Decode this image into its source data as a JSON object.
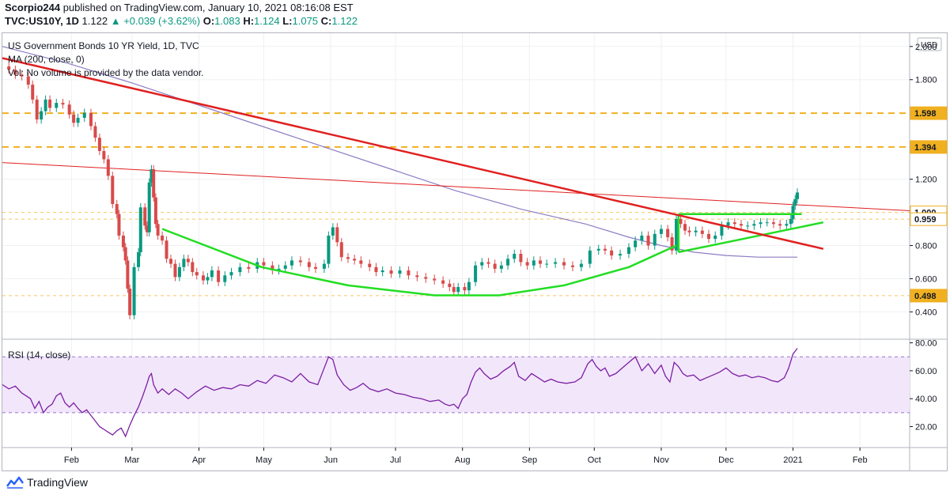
{
  "header": {
    "author": "Scorpio244",
    "published": "published on TradingView.com, January 10, 2021 08:16:08 EST",
    "symbol": "TVC:US10Y, 1D",
    "last": "1.122",
    "change": "+0.039 (+3.62%)",
    "o_label": "O:",
    "o": "1.083",
    "h_label": "H:",
    "h": "1.124",
    "l_label": "L:",
    "l": "1.075",
    "c_label": "C:",
    "c": "1.122"
  },
  "brand": {
    "name": "TradingView"
  },
  "colors": {
    "up": "#089981",
    "down": "#d84a4a",
    "grid": "#eef0f3",
    "ma": "#8e7cc3",
    "trend_red": "#e02020",
    "trend_green": "#22dd22",
    "level": "#f0b020",
    "rsi_band": "#f2e6fb",
    "rsi_line": "#7b1fa2"
  },
  "chart_data": [
    {
      "type": "candlestick",
      "title": "US Government Bonds 10 YR Yield, 1D, TVC",
      "legend": [
        "MA (200, close, 0)",
        "Vol: No volume is provided by the data vendor."
      ],
      "currency": "USD",
      "yticks": [
        "2.000",
        "1.800",
        "1.200",
        "0.800",
        "0.600",
        "0.400"
      ],
      "ylim": [
        0.24,
        2.08
      ],
      "levels": [
        1.598,
        1.394,
        1.0,
        0.959,
        0.498
      ],
      "level_labels": [
        "1.598",
        "1.394",
        "1.000",
        "0.959",
        "0.498"
      ],
      "last_price_box": "1.000",
      "months": [
        {
          "label": "Feb",
          "x": 32
        },
        {
          "label": "Mar",
          "x": 60
        },
        {
          "label": "Apr",
          "x": 91
        },
        {
          "label": "May",
          "x": 121
        },
        {
          "label": "Jun",
          "x": 152
        },
        {
          "label": "Jul",
          "x": 182
        },
        {
          "label": "Aug",
          "x": 213
        },
        {
          "label": "Sep",
          "x": 244
        },
        {
          "label": "Oct",
          "x": 274
        },
        {
          "label": "Nov",
          "x": 305
        },
        {
          "label": "Dec",
          "x": 335
        },
        {
          "label": "2021",
          "x": 366
        },
        {
          "label": "Feb",
          "x": 397
        }
      ],
      "xlim": [
        0,
        420
      ],
      "close_series": [
        [
          0,
          1.88
        ],
        [
          3,
          1.86
        ],
        [
          6,
          1.83
        ],
        [
          9,
          1.82
        ],
        [
          12,
          1.77
        ],
        [
          14,
          1.68
        ],
        [
          16,
          1.56
        ],
        [
          18,
          1.61
        ],
        [
          20,
          1.68
        ],
        [
          22,
          1.63
        ],
        [
          25,
          1.66
        ],
        [
          28,
          1.65
        ],
        [
          31,
          1.59
        ],
        [
          33,
          1.54
        ],
        [
          35,
          1.57
        ],
        [
          38,
          1.6
        ],
        [
          41,
          1.52
        ],
        [
          43,
          1.45
        ],
        [
          45,
          1.37
        ],
        [
          47,
          1.32
        ],
        [
          49,
          1.22
        ],
        [
          51,
          1.05
        ],
        [
          53,
          0.99
        ],
        [
          54,
          0.86
        ],
        [
          56,
          0.79
        ],
        [
          57,
          0.71
        ],
        [
          58,
          0.54
        ],
        [
          59,
          0.38
        ],
        [
          61,
          0.67
        ],
        [
          63,
          0.76
        ],
        [
          64,
          1.03
        ],
        [
          66,
          0.92
        ],
        [
          67,
          0.88
        ],
        [
          68,
          1.18
        ],
        [
          69,
          1.26
        ],
        [
          70,
          1.09
        ],
        [
          71,
          0.93
        ],
        [
          72,
          0.86
        ],
        [
          74,
          0.83
        ],
        [
          76,
          0.72
        ],
        [
          78,
          0.69
        ],
        [
          80,
          0.61
        ],
        [
          82,
          0.67
        ],
        [
          84,
          0.72
        ],
        [
          86,
          0.7
        ],
        [
          88,
          0.64
        ],
        [
          90,
          0.62
        ],
        [
          93,
          0.59
        ],
        [
          95,
          0.61
        ],
        [
          97,
          0.65
        ],
        [
          100,
          0.58
        ],
        [
          103,
          0.62
        ],
        [
          106,
          0.64
        ],
        [
          110,
          0.67
        ],
        [
          114,
          0.66
        ],
        [
          118,
          0.7
        ],
        [
          121,
          0.68
        ],
        [
          125,
          0.65
        ],
        [
          128,
          0.66
        ],
        [
          131,
          0.68
        ],
        [
          134,
          0.71
        ],
        [
          138,
          0.7
        ],
        [
          142,
          0.67
        ],
        [
          145,
          0.66
        ],
        [
          149,
          0.69
        ],
        [
          151,
          0.86
        ],
        [
          153,
          0.91
        ],
        [
          155,
          0.82
        ],
        [
          157,
          0.73
        ],
        [
          160,
          0.72
        ],
        [
          163,
          0.71
        ],
        [
          166,
          0.69
        ],
        [
          170,
          0.67
        ],
        [
          173,
          0.64
        ],
        [
          176,
          0.65
        ],
        [
          180,
          0.63
        ],
        [
          184,
          0.65
        ],
        [
          188,
          0.62
        ],
        [
          192,
          0.61
        ],
        [
          196,
          0.6
        ],
        [
          200,
          0.59
        ],
        [
          204,
          0.57
        ],
        [
          207,
          0.55
        ],
        [
          209,
          0.52
        ],
        [
          211,
          0.55
        ],
        [
          214,
          0.53
        ],
        [
          216,
          0.58
        ],
        [
          219,
          0.68
        ],
        [
          222,
          0.7
        ],
        [
          225,
          0.69
        ],
        [
          228,
          0.66
        ],
        [
          231,
          0.68
        ],
        [
          234,
          0.72
        ],
        [
          237,
          0.75
        ],
        [
          240,
          0.7
        ],
        [
          243,
          0.68
        ],
        [
          246,
          0.71
        ],
        [
          249,
          0.69
        ],
        [
          252,
          0.69
        ],
        [
          256,
          0.7
        ],
        [
          260,
          0.68
        ],
        [
          264,
          0.67
        ],
        [
          268,
          0.69
        ],
        [
          272,
          0.77
        ],
        [
          276,
          0.78
        ],
        [
          279,
          0.77
        ],
        [
          282,
          0.74
        ],
        [
          286,
          0.75
        ],
        [
          290,
          0.79
        ],
        [
          293,
          0.83
        ],
        [
          296,
          0.86
        ],
        [
          299,
          0.8
        ],
        [
          302,
          0.87
        ],
        [
          305,
          0.9
        ],
        [
          308,
          0.85
        ],
        [
          310,
          0.77
        ],
        [
          312,
          0.96
        ],
        [
          314,
          0.93
        ],
        [
          316,
          0.89
        ],
        [
          318,
          0.88
        ],
        [
          321,
          0.89
        ],
        [
          324,
          0.87
        ],
        [
          327,
          0.84
        ],
        [
          330,
          0.86
        ],
        [
          333,
          0.92
        ],
        [
          336,
          0.94
        ],
        [
          339,
          0.93
        ],
        [
          342,
          0.92
        ],
        [
          345,
          0.92
        ],
        [
          348,
          0.93
        ],
        [
          351,
          0.94
        ],
        [
          354,
          0.94
        ],
        [
          357,
          0.93
        ],
        [
          360,
          0.92
        ],
        [
          363,
          0.93
        ],
        [
          365,
          0.96
        ],
        [
          366,
          1.04
        ],
        [
          367,
          1.08
        ],
        [
          368,
          1.12
        ]
      ],
      "ma200": [
        [
          0,
          2.0
        ],
        [
          30,
          1.9
        ],
        [
          60,
          1.78
        ],
        [
          90,
          1.65
        ],
        [
          120,
          1.52
        ],
        [
          150,
          1.39
        ],
        [
          180,
          1.26
        ],
        [
          210,
          1.13
        ],
        [
          240,
          1.02
        ],
        [
          270,
          0.93
        ],
        [
          290,
          0.85
        ],
        [
          305,
          0.8
        ],
        [
          320,
          0.76
        ],
        [
          335,
          0.74
        ],
        [
          350,
          0.73
        ],
        [
          368,
          0.73
        ]
      ],
      "trend_red_long": [
        [
          0,
          1.93
        ],
        [
          380,
          0.78
        ]
      ],
      "trend_red_thin": [
        [
          0,
          1.3
        ],
        [
          420,
          1.01
        ]
      ],
      "cup_green": [
        [
          74,
          0.9
        ],
        [
          120,
          0.67
        ],
        [
          160,
          0.56
        ],
        [
          200,
          0.5
        ],
        [
          230,
          0.5
        ],
        [
          260,
          0.56
        ],
        [
          290,
          0.67
        ],
        [
          312,
          0.8
        ]
      ],
      "triangle_top": [
        [
          313,
          0.99
        ],
        [
          370,
          0.99
        ]
      ],
      "triangle_bottom": [
        [
          313,
          0.76
        ],
        [
          380,
          0.94
        ]
      ],
      "triangle_side": [
        [
          313,
          0.99
        ],
        [
          313,
          0.76
        ]
      ]
    },
    {
      "type": "line",
      "title": "RSI (14, close)",
      "yticks": [
        "80.00",
        "60.00",
        "40.00",
        "20.00"
      ],
      "ylim": [
        5,
        82
      ],
      "band": [
        30,
        70
      ],
      "values": [
        [
          0,
          50
        ],
        [
          3,
          47
        ],
        [
          6,
          49
        ],
        [
          9,
          44
        ],
        [
          11,
          42
        ],
        [
          13,
          40
        ],
        [
          15,
          33
        ],
        [
          17,
          38
        ],
        [
          19,
          30
        ],
        [
          21,
          34
        ],
        [
          23,
          36
        ],
        [
          25,
          42
        ],
        [
          27,
          44
        ],
        [
          29,
          37
        ],
        [
          31,
          34
        ],
        [
          33,
          37
        ],
        [
          35,
          33
        ],
        [
          37,
          30
        ],
        [
          39,
          32
        ],
        [
          41,
          28
        ],
        [
          43,
          24
        ],
        [
          45,
          20
        ],
        [
          47,
          18
        ],
        [
          49,
          16
        ],
        [
          51,
          14
        ],
        [
          53,
          17
        ],
        [
          55,
          19
        ],
        [
          57,
          13
        ],
        [
          59,
          21
        ],
        [
          61,
          28
        ],
        [
          63,
          34
        ],
        [
          65,
          42
        ],
        [
          67,
          51
        ],
        [
          68,
          56
        ],
        [
          69,
          58
        ],
        [
          70,
          50
        ],
        [
          72,
          44
        ],
        [
          74,
          47
        ],
        [
          77,
          43
        ],
        [
          80,
          47
        ],
        [
          83,
          44
        ],
        [
          86,
          40
        ],
        [
          90,
          45
        ],
        [
          94,
          49
        ],
        [
          98,
          46
        ],
        [
          102,
          48
        ],
        [
          106,
          47
        ],
        [
          110,
          50
        ],
        [
          114,
          49
        ],
        [
          118,
          53
        ],
        [
          122,
          51
        ],
        [
          126,
          57
        ],
        [
          130,
          55
        ],
        [
          134,
          52
        ],
        [
          138,
          58
        ],
        [
          142,
          52
        ],
        [
          146,
          50
        ],
        [
          149,
          62
        ],
        [
          151,
          70
        ],
        [
          153,
          68
        ],
        [
          155,
          57
        ],
        [
          158,
          50
        ],
        [
          161,
          46
        ],
        [
          164,
          48
        ],
        [
          167,
          51
        ],
        [
          170,
          47
        ],
        [
          174,
          45
        ],
        [
          178,
          47
        ],
        [
          182,
          44
        ],
        [
          186,
          43
        ],
        [
          190,
          41
        ],
        [
          194,
          40
        ],
        [
          198,
          38
        ],
        [
          202,
          39
        ],
        [
          205,
          36
        ],
        [
          207,
          35
        ],
        [
          209,
          36
        ],
        [
          211,
          33
        ],
        [
          213,
          40
        ],
        [
          215,
          43
        ],
        [
          217,
          52
        ],
        [
          219,
          59
        ],
        [
          221,
          62
        ],
        [
          223,
          58
        ],
        [
          226,
          54
        ],
        [
          229,
          56
        ],
        [
          232,
          60
        ],
        [
          235,
          63
        ],
        [
          237,
          66
        ],
        [
          239,
          56
        ],
        [
          242,
          53
        ],
        [
          245,
          58
        ],
        [
          248,
          55
        ],
        [
          251,
          52
        ],
        [
          254,
          54
        ],
        [
          257,
          52
        ],
        [
          261,
          51
        ],
        [
          265,
          52
        ],
        [
          268,
          55
        ],
        [
          271,
          65
        ],
        [
          273,
          68
        ],
        [
          275,
          63
        ],
        [
          277,
          60
        ],
        [
          279,
          62
        ],
        [
          281,
          56
        ],
        [
          284,
          58
        ],
        [
          287,
          62
        ],
        [
          290,
          66
        ],
        [
          293,
          70
        ],
        [
          296,
          60
        ],
        [
          299,
          65
        ],
        [
          302,
          58
        ],
        [
          305,
          64
        ],
        [
          307,
          56
        ],
        [
          309,
          52
        ],
        [
          311,
          66
        ],
        [
          313,
          63
        ],
        [
          315,
          58
        ],
        [
          317,
          56
        ],
        [
          320,
          57
        ],
        [
          323,
          53
        ],
        [
          326,
          55
        ],
        [
          329,
          57
        ],
        [
          332,
          59
        ],
        [
          335,
          62
        ],
        [
          338,
          58
        ],
        [
          341,
          56
        ],
        [
          344,
          57
        ],
        [
          347,
          55
        ],
        [
          350,
          56
        ],
        [
          353,
          55
        ],
        [
          356,
          53
        ],
        [
          359,
          52
        ],
        [
          362,
          55
        ],
        [
          364,
          62
        ],
        [
          366,
          72
        ],
        [
          368,
          76
        ]
      ]
    }
  ]
}
